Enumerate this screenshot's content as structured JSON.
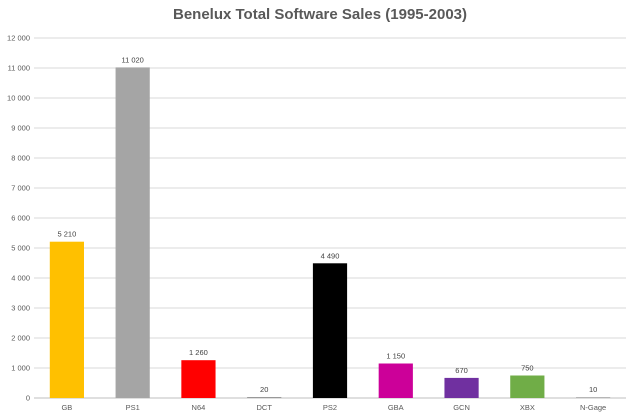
{
  "chart_data": {
    "type": "bar",
    "title": "Benelux Total Software Sales (1995-2003)",
    "xlabel": "",
    "ylabel": "",
    "categories": [
      "GB",
      "PS1",
      "N64",
      "DCT",
      "PS2",
      "GBA",
      "GCN",
      "XBX",
      "N-Gage"
    ],
    "values": [
      5210,
      11020,
      1260,
      20,
      4490,
      1150,
      670,
      750,
      10
    ],
    "value_labels": [
      "5 210",
      "11 020",
      "1 260",
      "20",
      "4 490",
      "1 150",
      "670",
      "750",
      "10"
    ],
    "colors": [
      "#FFC000",
      "#A5A5A5",
      "#FF0000",
      "#808080",
      "#000000",
      "#CC0099",
      "#7030A0",
      "#70AD47",
      "#A5A5A5"
    ],
    "ylim": [
      0,
      12000
    ],
    "yticks": [
      0,
      1000,
      2000,
      3000,
      4000,
      5000,
      6000,
      7000,
      8000,
      9000,
      10000,
      11000,
      12000
    ],
    "ytick_labels": [
      "0",
      "1 000",
      "2 000",
      "3 000",
      "4 000",
      "5 000",
      "6 000",
      "7 000",
      "8 000",
      "9 000",
      "10 000",
      "11 000",
      "12 000"
    ],
    "grid": true,
    "legend": "none"
  }
}
